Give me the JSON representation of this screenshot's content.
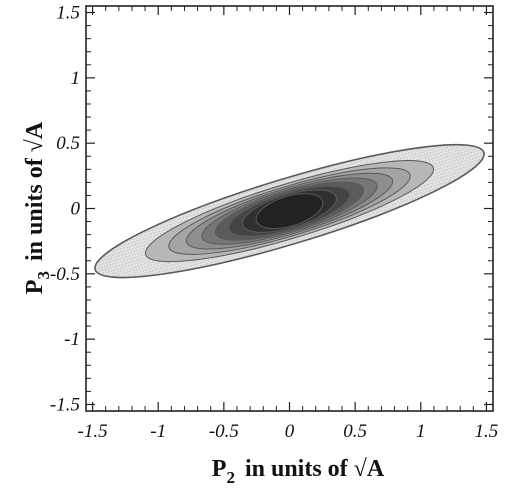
{
  "chart_data": {
    "type": "contour",
    "xlabel": {
      "symbol": "P",
      "subscript": "2",
      "text": "in units of √A"
    },
    "ylabel": {
      "symbol": "P",
      "subscript": "3",
      "text": "in units of √A"
    },
    "xlim": [
      -1.55,
      1.55
    ],
    "ylim": [
      -1.55,
      1.55
    ],
    "xticks": [
      -1.5,
      -1,
      -0.5,
      0,
      0.5,
      1,
      1.5
    ],
    "xtick_labels": [
      "-1.5",
      "-1",
      "-0.5",
      "0",
      "0.5",
      "1",
      "1.5"
    ],
    "yticks": [
      -1.5,
      -1,
      -0.5,
      0,
      0.5,
      1,
      1.5
    ],
    "ytick_labels": [
      "-1.5",
      "-1",
      "-0.5",
      "0",
      "0.5",
      "1",
      "1.5"
    ],
    "minor_ticks_per_major": 5,
    "grid": false,
    "contours": {
      "shape": "ellipse",
      "center": [
        0.0,
        -0.02
      ],
      "tilt_slope": 0.3,
      "outermost_x_extent": [
        -1.48,
        1.48
      ],
      "outermost_y_extent": [
        -0.45,
        0.42
      ],
      "levels": [
        {
          "scale": 1.0,
          "fill": "#e2e2e2",
          "stipple": true
        },
        {
          "scale": 0.74,
          "fill": "#b7b7b7",
          "stipple": false
        },
        {
          "scale": 0.62,
          "fill": "#a4a4a4",
          "stipple": false
        },
        {
          "scale": 0.53,
          "fill": "#8e8e8e",
          "stipple": false
        },
        {
          "scale": 0.45,
          "fill": "#767676",
          "stipple": false
        },
        {
          "scale": 0.38,
          "fill": "#5b5b5b",
          "stipple": false
        },
        {
          "scale": 0.31,
          "fill": "#444444",
          "stipple": false
        },
        {
          "scale": 0.24,
          "fill": "#303030",
          "stipple": false
        },
        {
          "scale": 0.17,
          "fill": "#222222",
          "stipple": false
        }
      ],
      "line_color": "#5a5a5a"
    }
  }
}
